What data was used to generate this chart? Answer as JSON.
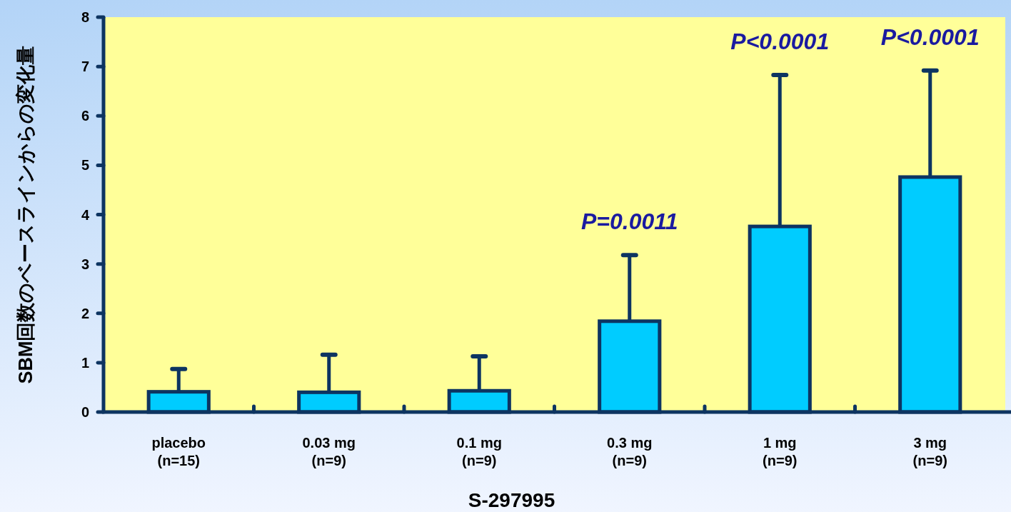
{
  "chart_data": {
    "type": "bar",
    "xlabel": "S-297995",
    "ylabel": "SBM回数のベースラインからの変化量",
    "categories": [
      "placebo\n(n=15)",
      "0.03 mg\n(n=9)",
      "0.1 mg\n(n=9)",
      "0.3 mg\n(n=9)",
      "1 mg\n(n=9)",
      "3 mg\n(n=9)"
    ],
    "values": [
      0.41,
      0.4,
      0.43,
      1.84,
      3.76,
      4.76
    ],
    "errors": [
      [
        0.41,
        0.87
      ],
      [
        0.4,
        1.16
      ],
      [
        0.43,
        1.13
      ],
      [
        1.84,
        3.18
      ],
      [
        3.76,
        6.83
      ],
      [
        4.76,
        6.92
      ]
    ],
    "color": "#00ccff",
    "ylim": [
      0,
      8
    ],
    "yticks": [
      0,
      1,
      2,
      3,
      4,
      5,
      6,
      7,
      8
    ],
    "grid": false,
    "annotations": [
      {
        "text": "P=0.0011",
        "x": "0.3 mg\n(n=9)",
        "y": 3.18
      },
      {
        "text": "P<0.0001",
        "x": "1 mg\n(n=9)",
        "y": 6.83
      },
      {
        "text": "P<0.0001",
        "x": "3 mg\n(n=9)",
        "y": 6.92
      }
    ]
  }
}
